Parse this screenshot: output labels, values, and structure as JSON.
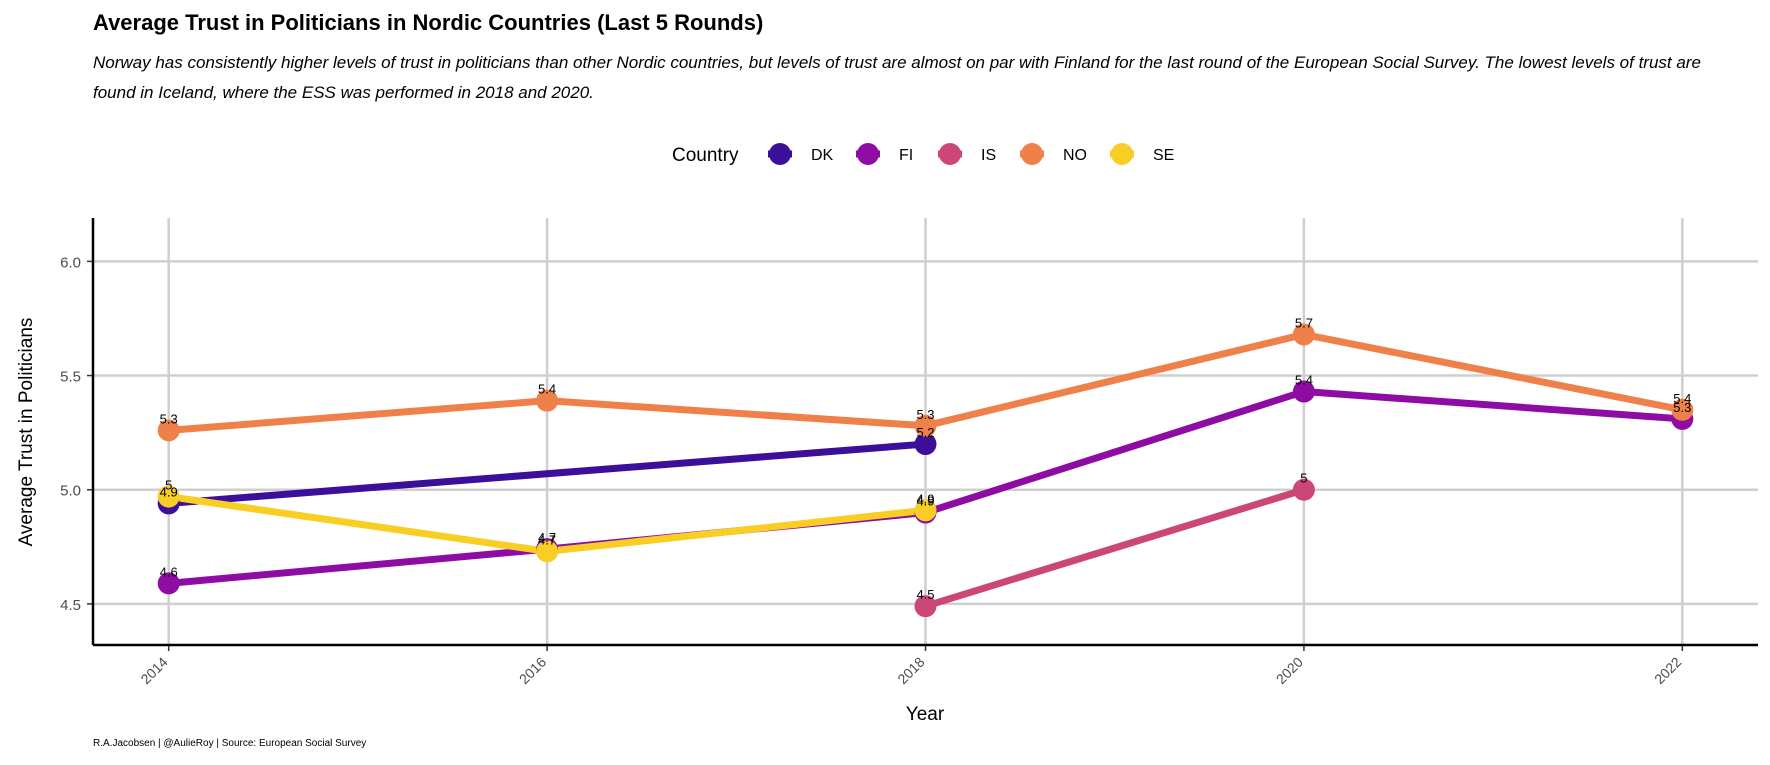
{
  "chart_data": {
    "type": "line",
    "title": "Average Trust in Politicians in Nordic Countries (Last 5 Rounds)",
    "subtitle": "Norway has consistently higher levels of trust in politicians than other Nordic countries, but levels of trust are almost on par with Finland for the last round of the European Social Survey. The lowest levels of trust are found in Iceland, where the ESS was performed in 2018 and 2020.",
    "xlabel": "Year",
    "ylabel": "Average Trust in Politicians",
    "x_ticks": [
      "2014",
      "2016",
      "2018",
      "2020",
      "2022"
    ],
    "y_ticks": [
      "4.5",
      "5.0",
      "5.5",
      "6.0"
    ],
    "xlim": [
      2013.6,
      2022.4
    ],
    "ylim": [
      4.32,
      6.19
    ],
    "grid": true,
    "legend": {
      "title": "Country",
      "position": "top"
    },
    "caption": "R.A.Jacobsen | @AulieRoy | Source: European Social Survey",
    "series": [
      {
        "name": "DK",
        "color": "#3B0F9A",
        "points": [
          {
            "x": 2014,
            "y": 4.94,
            "label": "4.9"
          },
          {
            "x": 2018,
            "y": 5.2,
            "label": "5.2"
          }
        ]
      },
      {
        "name": "FI",
        "color": "#8E0CA4",
        "points": [
          {
            "x": 2014,
            "y": 4.59,
            "label": "4.6"
          },
          {
            "x": 2016,
            "y": 4.74,
            "label": "4.7"
          },
          {
            "x": 2018,
            "y": 4.9,
            "label": "4.9"
          },
          {
            "x": 2020,
            "y": 5.43,
            "label": "5.4"
          },
          {
            "x": 2022,
            "y": 5.31,
            "label": "5.3"
          }
        ]
      },
      {
        "name": "IS",
        "color": "#CC4778",
        "points": [
          {
            "x": 2018,
            "y": 4.49,
            "label": "4.5"
          },
          {
            "x": 2020,
            "y": 5.0,
            "label": "5"
          }
        ]
      },
      {
        "name": "NO",
        "color": "#F0804A",
        "points": [
          {
            "x": 2014,
            "y": 5.26,
            "label": "5.3"
          },
          {
            "x": 2016,
            "y": 5.39,
            "label": "5.4"
          },
          {
            "x": 2018,
            "y": 5.28,
            "label": "5.3"
          },
          {
            "x": 2020,
            "y": 5.68,
            "label": "5.7"
          },
          {
            "x": 2022,
            "y": 5.35,
            "label": "5.4"
          }
        ]
      },
      {
        "name": "SE",
        "color": "#F8CE25",
        "points": [
          {
            "x": 2014,
            "y": 4.97,
            "label": "5"
          },
          {
            "x": 2016,
            "y": 4.73,
            "label": "4.7"
          },
          {
            "x": 2018,
            "y": 4.91,
            "label": "4.9"
          }
        ]
      }
    ]
  }
}
